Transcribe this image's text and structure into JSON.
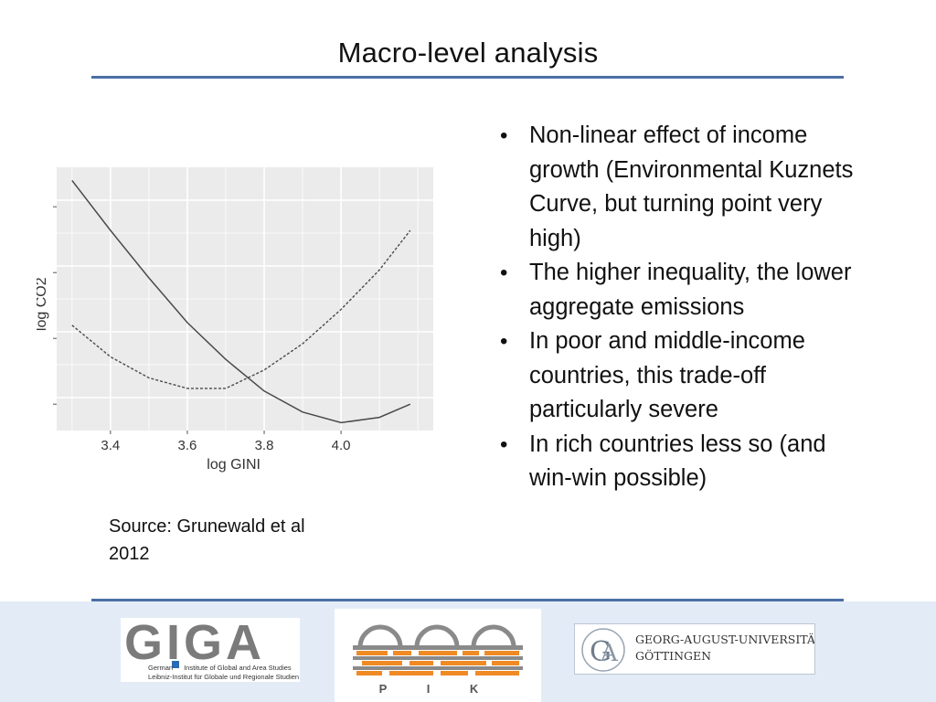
{
  "slide": {
    "title": "Macro-level analysis",
    "source": "Source: Grunewald et al 2012",
    "bullets": [
      "Non-linear effect of income growth (Environmental Kuznets Curve, but turning point very high)",
      "The higher inequality, the lower aggregate emissions",
      "In poor and middle-income countries, this trade-off particularly severe",
      "In rich countries less so (and win-win possible)"
    ]
  },
  "chart_data": {
    "type": "line",
    "title": "",
    "xlabel": "log GINI",
    "ylabel": "log CO2",
    "xlim": [
      3.26,
      4.24
    ],
    "ylim": [
      0,
      1
    ],
    "x_ticks": [
      3.4,
      3.6,
      3.8,
      4.0
    ],
    "y_tick_labels_shown": false,
    "grid": true,
    "background": "#ebebeb",
    "series": [
      {
        "style": "solid",
        "color": "#4a4a4a",
        "x": [
          3.3,
          3.4,
          3.5,
          3.6,
          3.7,
          3.8,
          3.9,
          4.0,
          4.1,
          4.18
        ],
        "y": [
          0.95,
          0.76,
          0.58,
          0.41,
          0.27,
          0.15,
          0.07,
          0.03,
          0.05,
          0.1
        ]
      },
      {
        "style": "dashed",
        "color": "#4a4a4a",
        "x": [
          3.3,
          3.4,
          3.5,
          3.6,
          3.7,
          3.8,
          3.9,
          4.0,
          4.1,
          4.18
        ],
        "y": [
          0.4,
          0.28,
          0.2,
          0.16,
          0.16,
          0.23,
          0.33,
          0.46,
          0.61,
          0.76
        ]
      }
    ]
  },
  "footer": {
    "giga": {
      "wordmark": "GIGA",
      "line1a": "German",
      "line1b": "Institute of Global and Area Studies",
      "line2": "Leibniz-Institut für Globale und Regionale Studien"
    },
    "pik": {
      "wordmark": "P I K"
    },
    "goettingen": {
      "line1": "GEORG-AUGUST-UNIVERSITÄT",
      "line2": "GÖTTINGEN",
      "colors": {
        "seal": "#9aa6b4",
        "text": "#333333"
      }
    },
    "colors": {
      "band": "#e3ecf6",
      "rule": "#4a6fa5",
      "giga_gray": "#7b7b7b",
      "giga_blue": "#2a6bb1",
      "pik_orange": "#f08a24",
      "pik_gray": "#8a8a8a"
    }
  }
}
